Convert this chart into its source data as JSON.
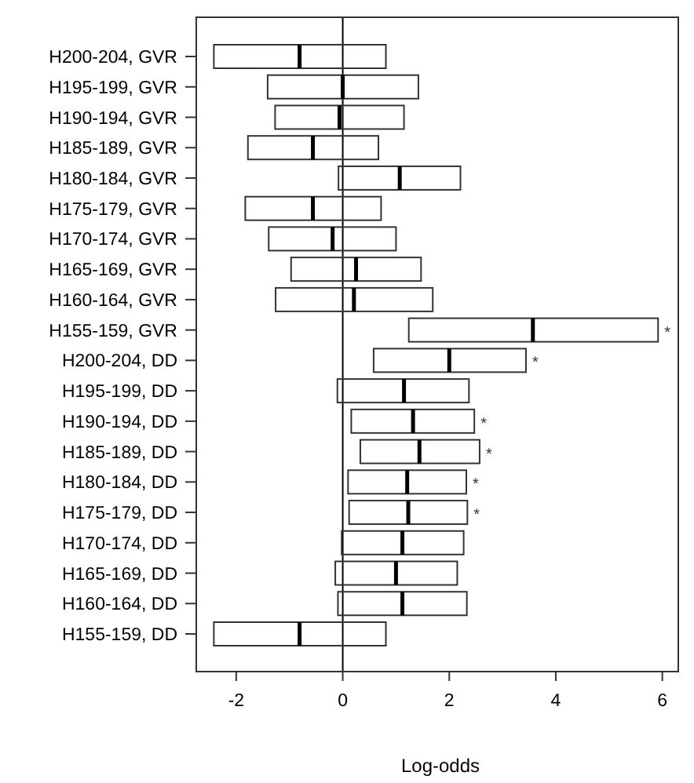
{
  "chart_data": {
    "type": "box",
    "orientation": "horizontal",
    "xlabel": "Log-odds",
    "categories": [
      "H200-204, GVR",
      "H195-199, GVR",
      "H190-194, GVR",
      "H185-189, GVR",
      "H180-184, GVR",
      "H175-179, GVR",
      "H170-174, GVR",
      "H165-169, GVR",
      "H160-164, GVR",
      "H155-159, GVR",
      "H200-204, DD",
      "H195-199, DD",
      "H190-194, DD",
      "H185-189, DD",
      "H180-184, DD",
      "H175-179, DD",
      "H170-174, DD",
      "H165-169, DD",
      "H160-164, DD",
      "H155-159, DD"
    ],
    "boxes": [
      {
        "low": -2.42,
        "q1": -2.42,
        "median": -0.81,
        "q3": 0.81,
        "high": 0.81
      },
      {
        "low": -1.41,
        "q1": -1.41,
        "median": 0.0,
        "q3": 1.42,
        "high": 1.42
      },
      {
        "low": -1.27,
        "q1": -1.27,
        "median": -0.06,
        "q3": 1.15,
        "high": 1.15
      },
      {
        "low": -1.78,
        "q1": -1.78,
        "median": -0.56,
        "q3": 0.67,
        "high": 0.67
      },
      {
        "low": -0.08,
        "q1": -0.08,
        "median": 1.07,
        "q3": 2.21,
        "high": 2.21
      },
      {
        "low": -1.83,
        "q1": -1.83,
        "median": -0.56,
        "q3": 0.72,
        "high": 0.72
      },
      {
        "low": -1.39,
        "q1": -1.39,
        "median": -0.19,
        "q3": 1.0,
        "high": 1.0
      },
      {
        "low": -0.97,
        "q1": -0.97,
        "median": 0.25,
        "q3": 1.47,
        "high": 1.47
      },
      {
        "low": -1.26,
        "q1": -1.26,
        "median": 0.21,
        "q3": 1.69,
        "high": 1.69
      },
      {
        "low": 1.24,
        "q1": 1.24,
        "median": 3.57,
        "q3": 5.92,
        "high": 5.92
      },
      {
        "low": 0.58,
        "q1": 0.58,
        "median": 2.0,
        "q3": 3.44,
        "high": 3.44
      },
      {
        "low": -0.1,
        "q1": -0.1,
        "median": 1.15,
        "q3": 2.37,
        "high": 2.37
      },
      {
        "low": 0.16,
        "q1": 0.16,
        "median": 1.32,
        "q3": 2.47,
        "high": 2.47
      },
      {
        "low": 0.33,
        "q1": 0.33,
        "median": 1.44,
        "q3": 2.57,
        "high": 2.57
      },
      {
        "low": 0.1,
        "q1": 0.1,
        "median": 1.21,
        "q3": 2.32,
        "high": 2.32
      },
      {
        "low": 0.12,
        "q1": 0.12,
        "median": 1.23,
        "q3": 2.34,
        "high": 2.34
      },
      {
        "low": -0.02,
        "q1": -0.02,
        "median": 1.12,
        "q3": 2.27,
        "high": 2.27
      },
      {
        "low": -0.14,
        "q1": -0.14,
        "median": 1.0,
        "q3": 2.15,
        "high": 2.15
      },
      {
        "low": -0.09,
        "q1": -0.09,
        "median": 1.12,
        "q3": 2.33,
        "high": 2.33
      },
      {
        "low": -2.42,
        "q1": -2.42,
        "median": -0.81,
        "q3": 0.81,
        "high": 0.81
      }
    ],
    "xlim": [
      -2.75,
      6.3
    ],
    "xticks": [
      -2,
      0,
      2,
      4,
      6
    ],
    "grid": false,
    "ref_lines": [
      {
        "axis": "x",
        "value": 0,
        "color": "#000000"
      }
    ],
    "annotations": [
      {
        "text": "*",
        "x": 5.92,
        "y": "H155-159, GVR"
      },
      {
        "text": "*",
        "x": 3.44,
        "y": "H200-204, DD"
      },
      {
        "text": "*",
        "x": 2.47,
        "y": "H190-194, DD"
      },
      {
        "text": "*",
        "x": 2.57,
        "y": "H185-189, DD"
      },
      {
        "text": "*",
        "x": 2.32,
        "y": "H180-184, DD"
      },
      {
        "text": "*",
        "x": 2.34,
        "y": "H175-179, DD"
      }
    ]
  }
}
